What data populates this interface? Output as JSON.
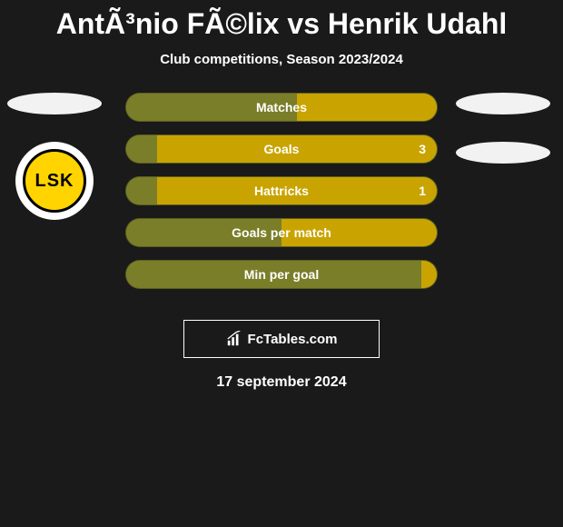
{
  "title": "AntÃ³nio FÃ©lix vs Henrik Udahl",
  "subtitle": "Club competitions, Season 2023/2024",
  "left_team": {
    "badge_color_top": "#f2f2f2",
    "lsk_text": "LSK",
    "lsk_outer_bg": "#ffffff",
    "lsk_inner_bg": "#ffd400",
    "lsk_inner_border": "#000000",
    "lsk_text_color": "#000000"
  },
  "right_team": {
    "badge_color_top": "#f2f2f2",
    "badge_color_bottom": "#f2f2f2"
  },
  "bars": {
    "left_color": "#7a7e29",
    "right_color": "#c9a400",
    "track_bg": "#7a7e29",
    "label_color": "#ffffff",
    "items": [
      {
        "label": "Matches",
        "left_pct": 55,
        "right_pct": 45,
        "left_value": "",
        "right_value": ""
      },
      {
        "label": "Goals",
        "left_pct": 10,
        "right_pct": 90,
        "left_value": "",
        "right_value": "3"
      },
      {
        "label": "Hattricks",
        "left_pct": 10,
        "right_pct": 90,
        "left_value": "",
        "right_value": "1"
      },
      {
        "label": "Goals per match",
        "left_pct": 50,
        "right_pct": 50,
        "left_value": "",
        "right_value": ""
      },
      {
        "label": "Min per goal",
        "left_pct": 95,
        "right_pct": 5,
        "left_value": "",
        "right_value": ""
      }
    ]
  },
  "attribution": "FcTables.com",
  "date": "17 september 2024",
  "background_color": "#1a1a1a"
}
